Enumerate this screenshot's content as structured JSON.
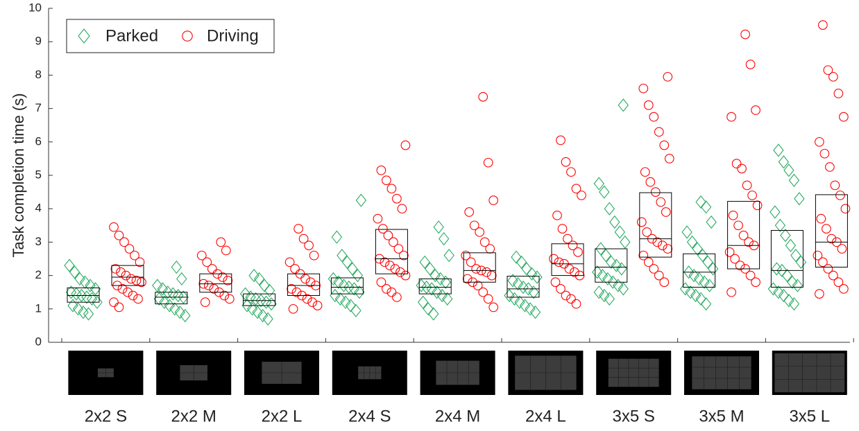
{
  "chart_data": {
    "type": "box-scatter",
    "ylabel": "Task completion time (s)",
    "ylim": [
      0,
      10
    ],
    "yticks": [
      0,
      1,
      2,
      3,
      4,
      5,
      6,
      7,
      8,
      9,
      10
    ],
    "legend": "upper left",
    "categories": [
      "2x2 S",
      "2x2 M",
      "2x2 L",
      "2x4 S",
      "2x4 M",
      "2x4 L",
      "3x5 S",
      "3x5 M",
      "3x5 L"
    ],
    "series": [
      {
        "name": "Parked",
        "color": "#2aab62",
        "marker": "diamond",
        "boxes": [
          {
            "q1": 1.2,
            "median": 1.4,
            "q3": 1.63
          },
          {
            "q1": 1.15,
            "median": 1.35,
            "q3": 1.5
          },
          {
            "q1": 1.1,
            "median": 1.25,
            "q3": 1.45
          },
          {
            "q1": 1.45,
            "median": 1.65,
            "q3": 1.93
          },
          {
            "q1": 1.45,
            "median": 1.65,
            "q3": 1.9
          },
          {
            "q1": 1.35,
            "median": 1.6,
            "q3": 1.98
          },
          {
            "q1": 1.8,
            "median": 2.25,
            "q3": 2.8
          },
          {
            "q1": 1.65,
            "median": 2.1,
            "q3": 2.65
          },
          {
            "q1": 1.65,
            "median": 2.15,
            "q3": 3.35
          }
        ],
        "points": [
          [
            2.3,
            2.1,
            1.9,
            1.8,
            1.7,
            1.6,
            1.5,
            1.45,
            1.4,
            1.35,
            1.3,
            1.2,
            1.1,
            1.0,
            0.9,
            0.85
          ],
          [
            2.25,
            1.9,
            1.7,
            1.6,
            1.5,
            1.45,
            1.4,
            1.35,
            1.3,
            1.2,
            1.1,
            1.0,
            0.9,
            0.8
          ],
          [
            2.0,
            1.9,
            1.7,
            1.55,
            1.45,
            1.35,
            1.3,
            1.25,
            1.2,
            1.15,
            1.1,
            1.0,
            0.9,
            0.8,
            0.7
          ],
          [
            4.25,
            3.15,
            2.6,
            2.4,
            2.2,
            2.0,
            1.9,
            1.8,
            1.7,
            1.65,
            1.6,
            1.5,
            1.4,
            1.3,
            1.2,
            1.1,
            0.95
          ],
          [
            3.45,
            3.1,
            2.6,
            2.4,
            2.2,
            2.0,
            1.9,
            1.8,
            1.7,
            1.65,
            1.6,
            1.5,
            1.4,
            1.3,
            1.2,
            1.0,
            0.85
          ],
          [
            2.55,
            2.4,
            2.2,
            2.05,
            1.95,
            1.85,
            1.75,
            1.65,
            1.6,
            1.5,
            1.4,
            1.3,
            1.2,
            1.1,
            1.0,
            0.9
          ],
          [
            7.1,
            4.75,
            4.5,
            4.0,
            3.6,
            3.3,
            3.0,
            2.8,
            2.6,
            2.4,
            2.3,
            2.2,
            2.1,
            2.0,
            1.9,
            1.8,
            1.7,
            1.6,
            1.5,
            1.4,
            1.3
          ],
          [
            4.2,
            4.05,
            3.6,
            3.3,
            3.0,
            2.8,
            2.6,
            2.4,
            2.2,
            2.1,
            2.0,
            1.9,
            1.8,
            1.7,
            1.6,
            1.5,
            1.4,
            1.3,
            1.15
          ],
          [
            5.75,
            5.4,
            5.15,
            4.85,
            4.3,
            3.9,
            3.5,
            3.2,
            2.9,
            2.6,
            2.4,
            2.2,
            2.15,
            2.0,
            1.8,
            1.7,
            1.6,
            1.5,
            1.4,
            1.25,
            1.15
          ]
        ]
      },
      {
        "name": "Driving",
        "color": "#ff0000",
        "marker": "circle",
        "boxes": [
          {
            "q1": 1.7,
            "median": 1.95,
            "q3": 2.3
          },
          {
            "q1": 1.5,
            "median": 1.75,
            "q3": 2.05
          },
          {
            "q1": 1.4,
            "median": 1.7,
            "q3": 2.05
          },
          {
            "q1": 2.05,
            "median": 2.5,
            "q3": 3.38
          },
          {
            "q1": 1.8,
            "median": 2.15,
            "q3": 2.68
          },
          {
            "q1": 2.0,
            "median": 2.35,
            "q3": 2.95
          },
          {
            "q1": 2.55,
            "median": 3.1,
            "q3": 4.48
          },
          {
            "q1": 2.2,
            "median": 2.9,
            "q3": 4.22
          },
          {
            "q1": 2.25,
            "median": 3.0,
            "q3": 4.42
          }
        ],
        "points": [
          [
            3.45,
            3.2,
            3.0,
            2.8,
            2.6,
            2.4,
            2.2,
            2.1,
            2.0,
            1.9,
            1.85,
            1.8,
            1.7,
            1.6,
            1.5,
            1.4,
            1.3,
            1.2,
            1.05
          ],
          [
            3.0,
            2.75,
            2.6,
            2.4,
            2.2,
            2.05,
            1.95,
            1.85,
            1.75,
            1.7,
            1.6,
            1.5,
            1.4,
            1.3,
            1.2
          ],
          [
            3.4,
            3.1,
            2.9,
            2.6,
            2.4,
            2.2,
            2.05,
            1.9,
            1.8,
            1.7,
            1.6,
            1.5,
            1.4,
            1.3,
            1.2,
            1.1,
            1.0
          ],
          [
            5.9,
            5.15,
            4.85,
            4.6,
            4.3,
            4.0,
            3.7,
            3.4,
            3.2,
            3.0,
            2.8,
            2.6,
            2.5,
            2.4,
            2.3,
            2.2,
            2.1,
            2.0,
            1.8,
            1.6,
            1.5,
            1.35
          ],
          [
            7.35,
            5.38,
            4.25,
            3.9,
            3.5,
            3.3,
            3.0,
            2.8,
            2.6,
            2.4,
            2.2,
            2.15,
            2.1,
            2.0,
            1.9,
            1.8,
            1.7,
            1.5,
            1.3,
            1.05
          ],
          [
            6.05,
            5.4,
            5.1,
            4.6,
            4.4,
            3.8,
            3.4,
            3.1,
            2.9,
            2.7,
            2.5,
            2.4,
            2.35,
            2.2,
            2.1,
            2.0,
            1.8,
            1.6,
            1.4,
            1.3,
            1.15
          ],
          [
            7.95,
            7.6,
            7.1,
            6.75,
            6.3,
            5.9,
            5.5,
            5.1,
            4.8,
            4.5,
            4.2,
            3.9,
            3.6,
            3.3,
            3.1,
            3.0,
            2.9,
            2.8,
            2.6,
            2.4,
            2.2,
            2.0,
            1.8
          ],
          [
            9.22,
            8.32,
            6.95,
            6.75,
            5.35,
            5.2,
            4.7,
            4.4,
            4.1,
            3.8,
            3.5,
            3.2,
            3.0,
            2.9,
            2.7,
            2.5,
            2.3,
            2.2,
            2.0,
            1.8,
            1.5
          ],
          [
            9.5,
            8.15,
            7.95,
            7.45,
            6.75,
            6.0,
            5.65,
            5.25,
            4.7,
            4.4,
            4.0,
            3.7,
            3.4,
            3.1,
            3.0,
            2.8,
            2.6,
            2.4,
            2.2,
            2.0,
            1.8,
            1.6,
            1.45
          ]
        ]
      }
    ]
  }
}
